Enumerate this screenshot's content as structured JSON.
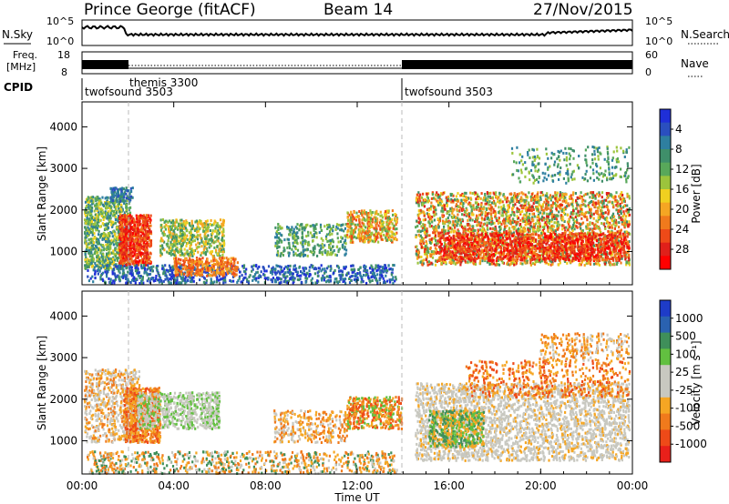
{
  "header": {
    "station": "Prince George (fitACF)",
    "beam": "Beam 14",
    "date": "27/Nov/2015"
  },
  "side_labels": {
    "nsky": "N.Sky",
    "nsearch": "N.Search",
    "freq_line1": "Freq.",
    "freq_line2": "[MHz]",
    "nave": "Nave",
    "cpid": "CPID"
  },
  "strip_ticks": {
    "noise_top": "10^5",
    "noise_bottom": "10^0",
    "freq_top": "18",
    "freq_bottom": "8",
    "nave_top": "60",
    "nave_bottom": "0"
  },
  "cpid_labels": [
    "twofsound 3503",
    "themis 3300",
    "twofsound 3503"
  ],
  "chart_data": [
    {
      "type": "heatmap",
      "title": "",
      "xlabel": "Time UT",
      "ylabel": "Slant Range [km]",
      "x_ticks": [
        "00:00",
        "04:00",
        "08:00",
        "12:00",
        "16:00",
        "20:00",
        "00:00"
      ],
      "y_ticks": [
        "1000",
        "2000",
        "3000",
        "4000"
      ],
      "ylim": [
        200,
        4600
      ],
      "colorbar": {
        "label": "Power [dB]",
        "ticks": [
          "4",
          "8",
          "12",
          "16",
          "20",
          "24",
          "28"
        ],
        "colors": [
          "#1f2fd8",
          "#2a4fbf",
          "#2e7fa0",
          "#3f8f6a",
          "#58a85a",
          "#9cc43c",
          "#f0d020",
          "#f5a623",
          "#f07a1c",
          "#ee4a18",
          "#e0201a",
          "#ff0000"
        ]
      }
    },
    {
      "type": "heatmap",
      "title": "",
      "xlabel": "Time UT",
      "ylabel": "Slant Range [km]",
      "x_ticks": [
        "00:00",
        "04:00",
        "08:00",
        "12:00",
        "16:00",
        "20:00",
        "00:00"
      ],
      "y_ticks": [
        "1000",
        "2000",
        "3000",
        "4000"
      ],
      "ylim": [
        200,
        4600
      ],
      "colorbar": {
        "label": "Velocity [m s⁻¹]",
        "ticks": [
          "1000",
          "500",
          "100",
          "25",
          "-25",
          "-100",
          "-500",
          "-1000"
        ],
        "colors": [
          "#1e3cc8",
          "#2a62b0",
          "#3f8f5a",
          "#62c040",
          "#c8c8c0",
          "#c8c8c0",
          "#f5a623",
          "#f07a1c",
          "#ee4a18",
          "#e8201a"
        ]
      }
    }
  ]
}
